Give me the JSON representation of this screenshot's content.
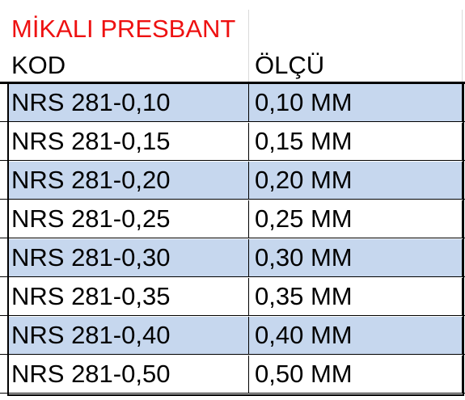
{
  "sheet": {
    "title": "MİKALI PRESBANT",
    "title_color": "#ee1111",
    "headers": {
      "kod": "KOD",
      "olcu": "ÖLÇÜ"
    },
    "row_shade_color": "#c6d7ee",
    "rows": [
      {
        "kod": "NRS 281-0,10",
        "olcu": "0,10 MM"
      },
      {
        "kod": "NRS 281-0,15",
        "olcu": "0,15 MM"
      },
      {
        "kod": "NRS 281-0,20",
        "olcu": "0,20 MM"
      },
      {
        "kod": "NRS 281-0,25",
        "olcu": "0,25 MM"
      },
      {
        "kod": "NRS 281-0,30",
        "olcu": "0,30 MM"
      },
      {
        "kod": "NRS 281-0,35",
        "olcu": "0,35 MM"
      },
      {
        "kod": "NRS 281-0,40",
        "olcu": "0,40 MM"
      },
      {
        "kod": "NRS 281-0,50",
        "olcu": "0,50 MM"
      }
    ]
  }
}
